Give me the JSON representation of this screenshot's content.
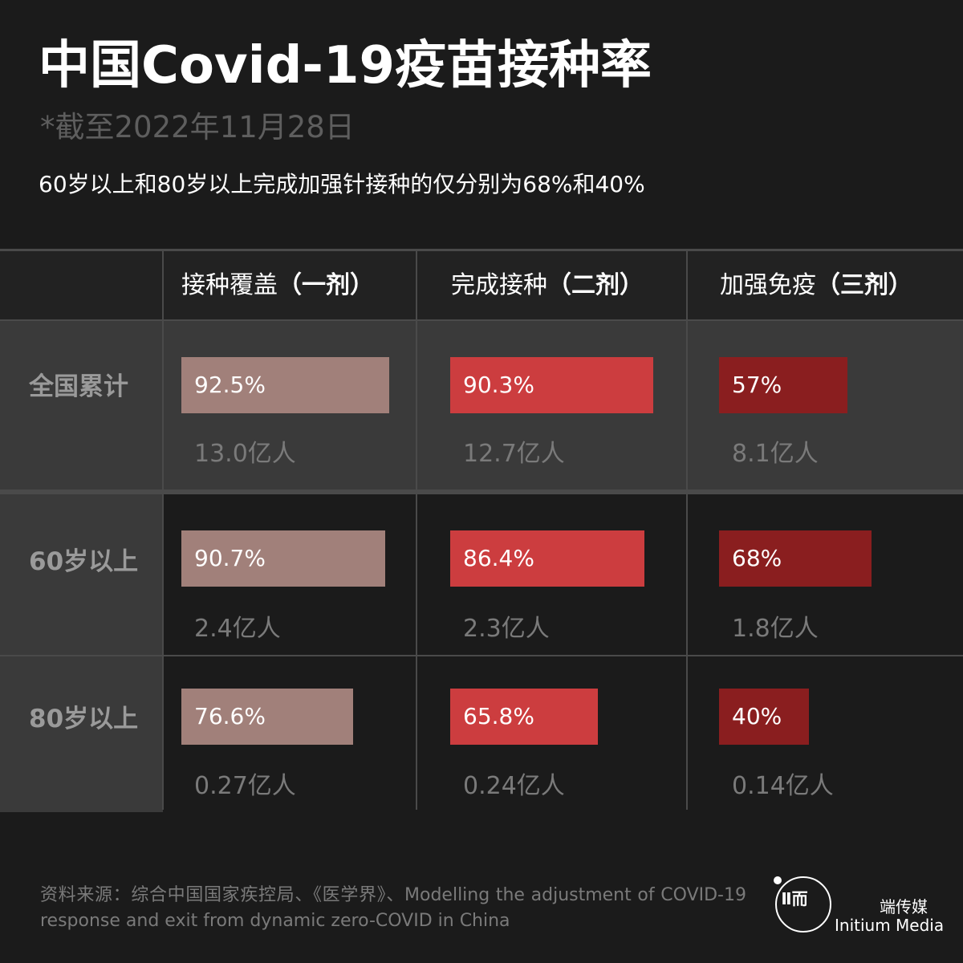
{
  "header": {
    "title": "中国Covid-19疫苗接种率",
    "subtitle": "*截至2022年11月28日",
    "caption": "60岁以上和80岁以上完成加强针接种的仅分别为68%和40%"
  },
  "colors": {
    "background": "#1b1b1b",
    "dose1": "#a1807a",
    "dose2": "#cc3d3f",
    "dose3": "#8a1e1f"
  },
  "chart_data": {
    "type": "table",
    "columns": [
      {
        "label": "接种覆盖",
        "dose": "（一剂）",
        "color": "#a1807a"
      },
      {
        "label": "完成接种",
        "dose": "（二剂）",
        "color": "#cc3d3f"
      },
      {
        "label": "加强免疫",
        "dose": "（三剂）",
        "color": "#8a1e1f"
      }
    ],
    "rows": [
      {
        "label": "全国累计",
        "values": [
          92.5,
          90.3,
          57
        ],
        "value_labels": [
          "92.5%",
          "90.3%",
          "57%"
        ],
        "counts": [
          "13.0亿人",
          "12.7亿人",
          "8.1亿人"
        ]
      },
      {
        "label": "60岁以上",
        "values": [
          90.7,
          86.4,
          68
        ],
        "value_labels": [
          "90.7%",
          "86.4%",
          "68%"
        ],
        "counts": [
          "2.4亿人",
          "2.3亿人",
          "1.8亿人"
        ]
      },
      {
        "label": "80岁以上",
        "values": [
          76.6,
          65.8,
          40
        ],
        "value_labels": [
          "76.6%",
          "65.8%",
          "40%"
        ],
        "counts": [
          "0.27亿人",
          "0.24亿人",
          "0.14亿人"
        ]
      }
    ]
  },
  "footer": {
    "source": "资料来源：综合中国国家疾控局、《医学界》、Modelling the adjustment of COVID-19 response and exit from dynamic zero-COVID in China",
    "brand_cn": "端传媒",
    "brand_en": "Initium Media",
    "logo_mark": "Ⅱ而"
  }
}
